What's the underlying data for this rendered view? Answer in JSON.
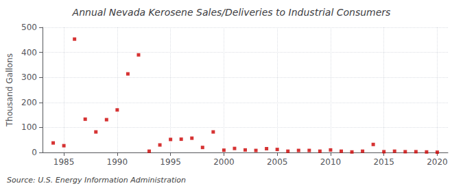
{
  "chart_data": {
    "type": "scatter",
    "title": "Annual Nevada Kerosene Sales/Deliveries to Industrial Consumers",
    "ylabel": "Thousand Gallons",
    "annotation": "Source: U.S. Energy Information Administration",
    "x": [
      1984,
      1985,
      1986,
      1987,
      1988,
      1989,
      1990,
      1991,
      1992,
      1993,
      1994,
      1995,
      1996,
      1997,
      1998,
      1999,
      2000,
      2001,
      2002,
      2003,
      2004,
      2005,
      2006,
      2007,
      2008,
      2009,
      2010,
      2011,
      2012,
      2013,
      2014,
      2015,
      2016,
      2017,
      2018,
      2019,
      2020
    ],
    "values": [
      38,
      27,
      453,
      133,
      82,
      131,
      170,
      314,
      390,
      5,
      30,
      52,
      53,
      57,
      20,
      82,
      9,
      16,
      10,
      8,
      15,
      12,
      5,
      8,
      8,
      5,
      10,
      5,
      2,
      5,
      32,
      3,
      5,
      3,
      3,
      2,
      1
    ],
    "color": "#cc0000",
    "marker": "square",
    "xlim": [
      1983,
      2021
    ],
    "ylim": [
      0,
      500
    ],
    "xticks": [
      1985,
      1990,
      1995,
      2000,
      2005,
      2010,
      2015,
      2020
    ],
    "yticks": [
      0,
      100,
      200,
      300,
      400,
      500
    ],
    "grid": true
  }
}
